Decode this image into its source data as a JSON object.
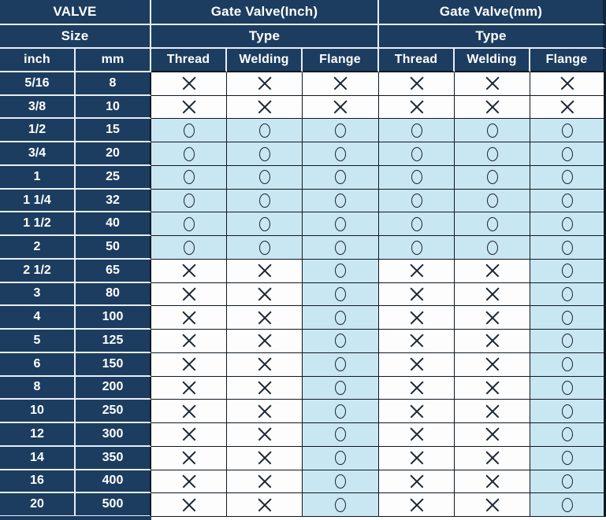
{
  "colors": {
    "header_navy": "#1c3d60",
    "cell_light_blue": "#c8e7f3",
    "cell_white": "#fdfdfd",
    "grid_line_dark": "#101820",
    "divider_light": "#e7eff8",
    "symbol_stroke": "#1b2530",
    "header_text": "#ffffff"
  },
  "header": {
    "row1": [
      "VALVE",
      "Gate Valve(Inch)",
      "Gate Valve(mm)"
    ],
    "row2": [
      "Size",
      "Type",
      "Type"
    ],
    "row3": [
      "inch",
      "mm",
      "Thread",
      "Welding",
      "Flange",
      "Thread",
      "Welding",
      "Flange"
    ]
  },
  "symbols": {
    "x": "✕",
    "o": "○"
  },
  "rows": [
    {
      "inch": "5/16",
      "mm": "8",
      "marks": [
        "x",
        "x",
        "x",
        "x",
        "x",
        "x"
      ]
    },
    {
      "inch": "3/8",
      "mm": "10",
      "marks": [
        "x",
        "x",
        "x",
        "x",
        "x",
        "x"
      ]
    },
    {
      "inch": "1/2",
      "mm": "15",
      "marks": [
        "o",
        "o",
        "o",
        "o",
        "o",
        "o"
      ]
    },
    {
      "inch": "3/4",
      "mm": "20",
      "marks": [
        "o",
        "o",
        "o",
        "o",
        "o",
        "o"
      ]
    },
    {
      "inch": "1",
      "mm": "25",
      "marks": [
        "o",
        "o",
        "o",
        "o",
        "o",
        "o"
      ]
    },
    {
      "inch": "1 1/4",
      "mm": "32",
      "marks": [
        "o",
        "o",
        "o",
        "o",
        "o",
        "o"
      ]
    },
    {
      "inch": "1 1/2",
      "mm": "40",
      "marks": [
        "o",
        "o",
        "o",
        "o",
        "o",
        "o"
      ]
    },
    {
      "inch": "2",
      "mm": "50",
      "marks": [
        "o",
        "o",
        "o",
        "o",
        "o",
        "o"
      ]
    },
    {
      "inch": "2 1/2",
      "mm": "65",
      "marks": [
        "x",
        "x",
        "o",
        "x",
        "x",
        "o"
      ]
    },
    {
      "inch": "3",
      "mm": "80",
      "marks": [
        "x",
        "x",
        "o",
        "x",
        "x",
        "o"
      ]
    },
    {
      "inch": "4",
      "mm": "100",
      "marks": [
        "x",
        "x",
        "o",
        "x",
        "x",
        "o"
      ]
    },
    {
      "inch": "5",
      "mm": "125",
      "marks": [
        "x",
        "x",
        "o",
        "x",
        "x",
        "o"
      ]
    },
    {
      "inch": "6",
      "mm": "150",
      "marks": [
        "x",
        "x",
        "o",
        "x",
        "x",
        "o"
      ]
    },
    {
      "inch": "8",
      "mm": "200",
      "marks": [
        "x",
        "x",
        "o",
        "x",
        "x",
        "o"
      ]
    },
    {
      "inch": "10",
      "mm": "250",
      "marks": [
        "x",
        "x",
        "o",
        "x",
        "x",
        "o"
      ]
    },
    {
      "inch": "12",
      "mm": "300",
      "marks": [
        "x",
        "x",
        "o",
        "x",
        "x",
        "o"
      ]
    },
    {
      "inch": "14",
      "mm": "350",
      "marks": [
        "x",
        "x",
        "o",
        "x",
        "x",
        "o"
      ]
    },
    {
      "inch": "16",
      "mm": "400",
      "marks": [
        "x",
        "x",
        "o",
        "x",
        "x",
        "o"
      ]
    },
    {
      "inch": "20",
      "mm": "500",
      "marks": [
        "x",
        "x",
        "o",
        "x",
        "x",
        "o"
      ]
    }
  ]
}
